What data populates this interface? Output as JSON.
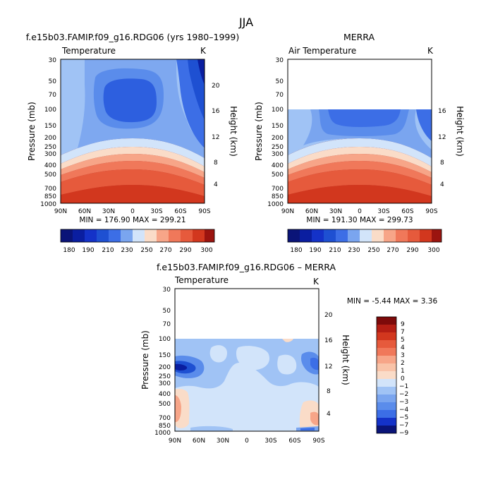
{
  "page_title": "JJA",
  "colors": {
    "cold_dark": "#0a1ea0",
    "cold_mid": "#3c6ee6",
    "cold_light": "#a0c3f5",
    "warm_light": "#fadcc8",
    "warm_mid": "#f0785a",
    "warm_dark": "#9b140f"
  },
  "panels": [
    {
      "id": "model",
      "title": "f.e15b03.FAMIP.f09_g16.RDG06 (yrs 1980–1999)",
      "variable": "Temperature",
      "units": "K",
      "stats": "MIN = 176.90   MAX = 299.21"
    },
    {
      "id": "obs",
      "title": "MERRA",
      "variable": "Air Temperature",
      "units": "K",
      "stats": "MIN = 191.30   MAX = 299.73"
    },
    {
      "id": "diff",
      "title": "f.e15b03.FAMIP.f09_g16.RDG06 – MERRA",
      "variable": "Temperature",
      "units": "K",
      "stats": "MIN =    -5.44   MAX =    3.36"
    }
  ],
  "chart_data": [
    {
      "type": "heatmap",
      "title": "f.e15b03.FAMIP.f09_g16.RDG06 (yrs 1980–1999)",
      "subtitle": "Temperature",
      "units": "K",
      "xlabel": "",
      "ylabel": "Pressure (mb)",
      "ylabel_right": "Height (km)",
      "x_ticks": [
        "90N",
        "60N",
        "30N",
        "0",
        "30S",
        "60S",
        "90S"
      ],
      "y_ticks": [
        30,
        50,
        70,
        100,
        150,
        200,
        250,
        300,
        400,
        500,
        700,
        850,
        1000
      ],
      "y_right_ticks": [
        4,
        8,
        12,
        16,
        20
      ],
      "ylim": [
        30,
        1000
      ],
      "log_y": true,
      "min": 176.9,
      "max": 299.21,
      "levels": [
        180,
        190,
        200,
        210,
        220,
        230,
        240,
        250,
        260,
        270,
        280,
        290,
        300
      ],
      "colorbar_labels": [
        "180",
        "190",
        "210",
        "230",
        "250",
        "270",
        "290",
        "300"
      ]
    },
    {
      "type": "heatmap",
      "title": "MERRA",
      "subtitle": "Air Temperature",
      "units": "K",
      "xlabel": "",
      "ylabel": "Pressure (mb)",
      "ylabel_right": "Height (km)",
      "x_ticks": [
        "90N",
        "60N",
        "30N",
        "0",
        "30S",
        "60S",
        "90S"
      ],
      "y_ticks": [
        30,
        50,
        70,
        100,
        150,
        200,
        250,
        300,
        400,
        500,
        700,
        850,
        1000
      ],
      "y_right_ticks": [
        4,
        8,
        12,
        16
      ],
      "ylim": [
        30,
        1000
      ],
      "log_y": true,
      "data_top_pressure": 100,
      "min": 191.3,
      "max": 299.73,
      "levels": [
        180,
        190,
        200,
        210,
        220,
        230,
        240,
        250,
        260,
        270,
        280,
        290,
        300
      ],
      "colorbar_labels": [
        "180",
        "190",
        "210",
        "230",
        "250",
        "270",
        "290",
        "300"
      ]
    },
    {
      "type": "heatmap",
      "title": "f.e15b03.FAMIP.f09_g16.RDG06 – MERRA",
      "subtitle": "Temperature",
      "units": "K",
      "xlabel": "",
      "ylabel": "Pressure (mb)",
      "ylabel_right": "Height (km)",
      "x_ticks": [
        "90N",
        "60N",
        "30N",
        "0",
        "30S",
        "60S",
        "90S"
      ],
      "y_ticks": [
        30,
        50,
        70,
        100,
        150,
        200,
        250,
        300,
        400,
        500,
        700,
        850,
        1000
      ],
      "y_right_ticks": [
        4,
        8,
        12,
        16,
        20
      ],
      "ylim": [
        30,
        1000
      ],
      "log_y": true,
      "data_top_pressure": 100,
      "min": -5.44,
      "max": 3.36,
      "levels": [
        -9,
        -7,
        -5,
        -4,
        -3,
        -2,
        -1,
        0,
        1,
        2,
        3,
        4,
        5,
        7,
        9
      ],
      "colorbar_labels": [
        "9",
        "7",
        "5",
        "4",
        "3",
        "2",
        "1",
        "0",
        "−1",
        "−2",
        "−3",
        "−4",
        "−5",
        "−7",
        "−9"
      ]
    }
  ]
}
